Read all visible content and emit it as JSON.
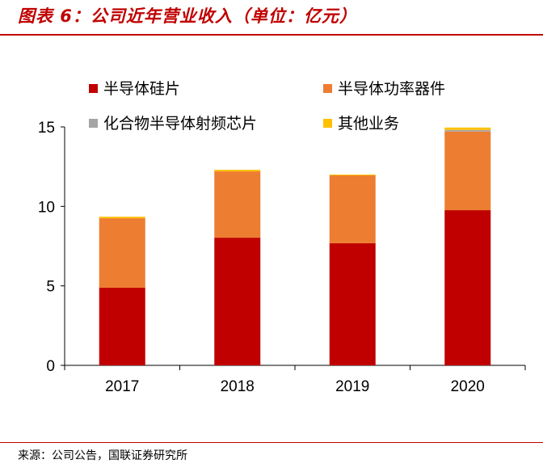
{
  "title": "图表 6：公司近年营业收入（单位：亿元）",
  "source": "来源：公司公告，国联证券研究所",
  "chart_data": {
    "type": "bar",
    "stacked": true,
    "categories": [
      "2017",
      "2018",
      "2019",
      "2020"
    ],
    "ylim": [
      0,
      15
    ],
    "yticks": [
      0,
      5,
      10,
      15
    ],
    "grid": false,
    "legend_placement": "top",
    "series": [
      {
        "name": "半导体硅片",
        "color": "#c00000",
        "values": [
          4.88,
          8.03,
          7.68,
          9.76
        ]
      },
      {
        "name": "半导体功率器件",
        "color": "#ed7d31",
        "values": [
          4.37,
          4.17,
          4.27,
          4.95
        ]
      },
      {
        "name": "化合物半导体射频芯片",
        "color": "#a5a5a5",
        "values": [
          0,
          0,
          0,
          0.1
        ]
      },
      {
        "name": "其他业务",
        "color": "#ffc000",
        "values": [
          0.1,
          0.1,
          0.05,
          0.15
        ]
      }
    ]
  }
}
